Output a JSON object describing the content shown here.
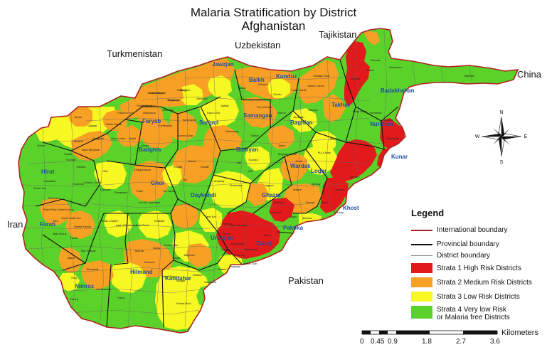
{
  "title": {
    "line1": "Malaria Stratification by District",
    "line2": "Afghanistan"
  },
  "countries": {
    "turkmenistan": "Turkmenistan",
    "uzbekistan": "Uzbekistan",
    "tajikistan": "Tajikistan",
    "china": "China",
    "iran": "Iran",
    "pakistan": "Pakistan"
  },
  "provinces": {
    "jawzjan": "Jawzjan",
    "balkh": "Balkh",
    "kunduz": "Kunduz",
    "takhar": "Takhar",
    "badakhshan": "Badakhshan",
    "faryab": "Faryab",
    "sar_i_pul": "Saripul",
    "samangan": "Samangan",
    "baghlan": "Baghlan",
    "nuristan": "Nuristan",
    "kunar": "Kunar",
    "badghis": "Badghis",
    "bamyan": "Bamyan",
    "wardak": "Wardak",
    "logar": "Logar",
    "hirat": "Hirat",
    "ghor": "Ghor",
    "daykondi": "Daykondi",
    "ghazni": "Ghazni",
    "khost": "Khost",
    "farah": "Farah",
    "uruzgan": "Uruzgan",
    "paktika": "Paktika",
    "zabul": "Zabul",
    "hilmand": "Hilmand",
    "kandahar": "Kandahar",
    "nimroz": "Nimroz"
  },
  "districts": [
    "Dawlatabad",
    "Shibirghan",
    "Andkhoy",
    "Qaramqol",
    "Khanaqa",
    "Mardyan",
    "Mazar",
    "Dihdadi",
    "Khulm",
    "Imam Sahib",
    "Dasht-i-Archi",
    "Khwaja Ghar",
    "Rustaq",
    "Yawan",
    "Darwaz",
    "Ishkashim",
    "Wakhan",
    "Maymana",
    "Pashtun Kot",
    "Shirin Tagab",
    "Qaysar",
    "Almar",
    "Kohistanat",
    "Sancharak",
    "Sozma Qala",
    "Aybak",
    "Dara-i-Suf",
    "Pul-i-Khumri",
    "Nahrin",
    "Andarab",
    "Khinjan",
    "Bargi Matal",
    "Kamdesh",
    "Waygal",
    "Asadabad",
    "Qala-i-Naw",
    "Murghab",
    "Jawand",
    "Qadis",
    "Muqur",
    "Bala Murghab",
    "Kohsan",
    "Gulran",
    "Kushk",
    "Karukh",
    "Obe",
    "Chisht-i-Sharif",
    "Chaghcharan",
    "Lal Wa Sarjangal",
    "Panjab",
    "Waras",
    "Yakawlang",
    "Shibar",
    "Jalrez",
    "Maydan Shahr",
    "Chak",
    "Pul-i-Alam",
    "Azra",
    "Injil",
    "Guzara",
    "Zinda Jan",
    "Adraskan",
    "Shindand",
    "Kishki Kuhna",
    "Shahrak",
    "Taywara",
    "Pasaband",
    "Tulak",
    "Du Layna",
    "Nili",
    "Khadir",
    "Ishtarlay",
    "Shahristan",
    "Kiti",
    "Jaghuri",
    "Malistan",
    "Nawur",
    "Ajristay",
    "Gardez",
    "Sperah",
    "Tani",
    "Nadir Shah Kot",
    "Sayed Karam",
    "Farah",
    "Bala Buluk",
    "Pusht Rod",
    "Khak-i-Safed",
    "Lash Wa Juwayn",
    "Anar Dara",
    "Gulistan",
    "Tarin Kot",
    "Dihrawud",
    "Chora",
    "Khas Uruzgan",
    "Sharana",
    "Urgun",
    "Barmal",
    "Gomal",
    "Qalat",
    "Shinkay",
    "Arghandab",
    "Mizan",
    "Atghar",
    "Shah Joy",
    "Lashkar Gah",
    "Nad Ali",
    "Nawa",
    "Garmser",
    "Musa Qala",
    "Kajaki",
    "Baghran",
    "Sangin",
    "Nahri Sarraj",
    "Washer",
    "Kandahar",
    "Dand",
    "Panjwayi",
    "Maywand",
    "Spin Boldak",
    "Shorabak",
    "Maruf",
    "Reg",
    "Zaranj",
    "Chakhansur",
    "Kang",
    "Khash Rod",
    "Chahar Burjak",
    "Dishu",
    "Reg(Khanishin)",
    "Registan"
  ],
  "legend": {
    "title": "Legend",
    "items": [
      {
        "label": "International  boundary",
        "kind": "line",
        "color": "#b02020"
      },
      {
        "label": "Provincial  boundary",
        "kind": "line",
        "color": "#111111"
      },
      {
        "label": "District boundary",
        "kind": "line",
        "color": "#888888"
      },
      {
        "label": "Strata 1 High Risk Districts",
        "kind": "box",
        "color": "#e31a1c"
      },
      {
        "label": "Strata 2 Medium Risk Districts",
        "kind": "box",
        "color": "#f7a023"
      },
      {
        "label": "Strata 3 Low Risk Districts",
        "kind": "box",
        "color": "#f7f722"
      },
      {
        "label": "Strata 4 Very low Risk",
        "label2": "or Malaria free Districts",
        "kind": "box",
        "color": "#5bd22a"
      }
    ]
  },
  "scale": {
    "unit": "Kilometers",
    "ticks": [
      "0",
      "0.45",
      "0.9",
      "1.8",
      "2.7",
      "3.6"
    ]
  },
  "compass": {
    "n": "N",
    "s": "S",
    "e": "E",
    "w": "W"
  },
  "colors": {
    "strata1": "#e31a1c",
    "strata2": "#f7a023",
    "strata3": "#f7f722",
    "strata4": "#5bd22a",
    "international_boundary": "#b02020",
    "provincial_boundary": "#111111"
  }
}
